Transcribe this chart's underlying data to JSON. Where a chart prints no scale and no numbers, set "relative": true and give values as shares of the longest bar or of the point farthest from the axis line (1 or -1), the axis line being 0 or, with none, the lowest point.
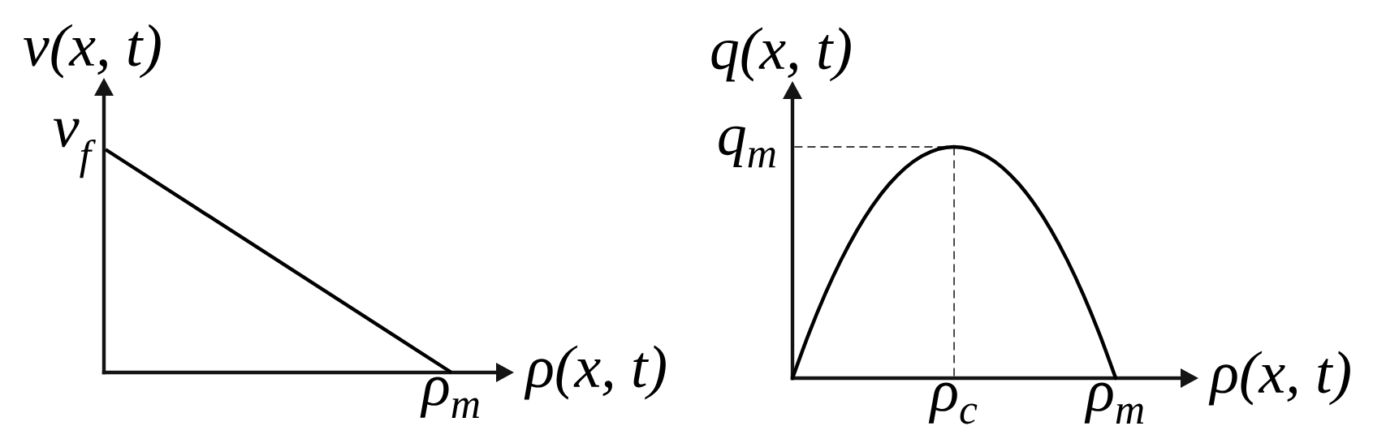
{
  "chart_data": [
    {
      "type": "line",
      "xlabel": "ρ(x, t)",
      "ylabel": "v(x, t)",
      "relative": true,
      "categories": [
        null,
        null
      ],
      "values": [
        1,
        0
      ],
      "color": "#000000",
      "annotations": [
        "v$_{f}$",
        {
          "text": "ρ$_{m}$",
          "y": 0
        }
      ]
    },
    {
      "type": "line",
      "xlabel": "ρ(x, t)",
      "ylabel": "q(x, t)",
      "relative": true,
      "categories": [
        null,
        null,
        null,
        null,
        null,
        null,
        null,
        null,
        null,
        null,
        "ρ$_{c}$",
        null,
        null,
        null,
        null,
        null,
        null,
        null,
        null,
        null,
        "ρ$_{m}$"
      ],
      "values": [
        0,
        0.19,
        0.36,
        0.51,
        0.64,
        0.75,
        0.84,
        0.91,
        0.96,
        0.99,
        1,
        0.99,
        0.96,
        0.91,
        0.84,
        0.75,
        0.64,
        0.51,
        0.36,
        0.19,
        0
      ],
      "color": "#000000",
      "ref_lines": [
        {
          "axis": "y",
          "value": 1,
          "label": "q$_{m}$",
          "line_style": "dashed",
          "color": "#000000"
        },
        {
          "axis": "x",
          "value": "ρ$_{c}$",
          "line_style": "dashed",
          "color": "#000000"
        }
      ]
    }
  ]
}
